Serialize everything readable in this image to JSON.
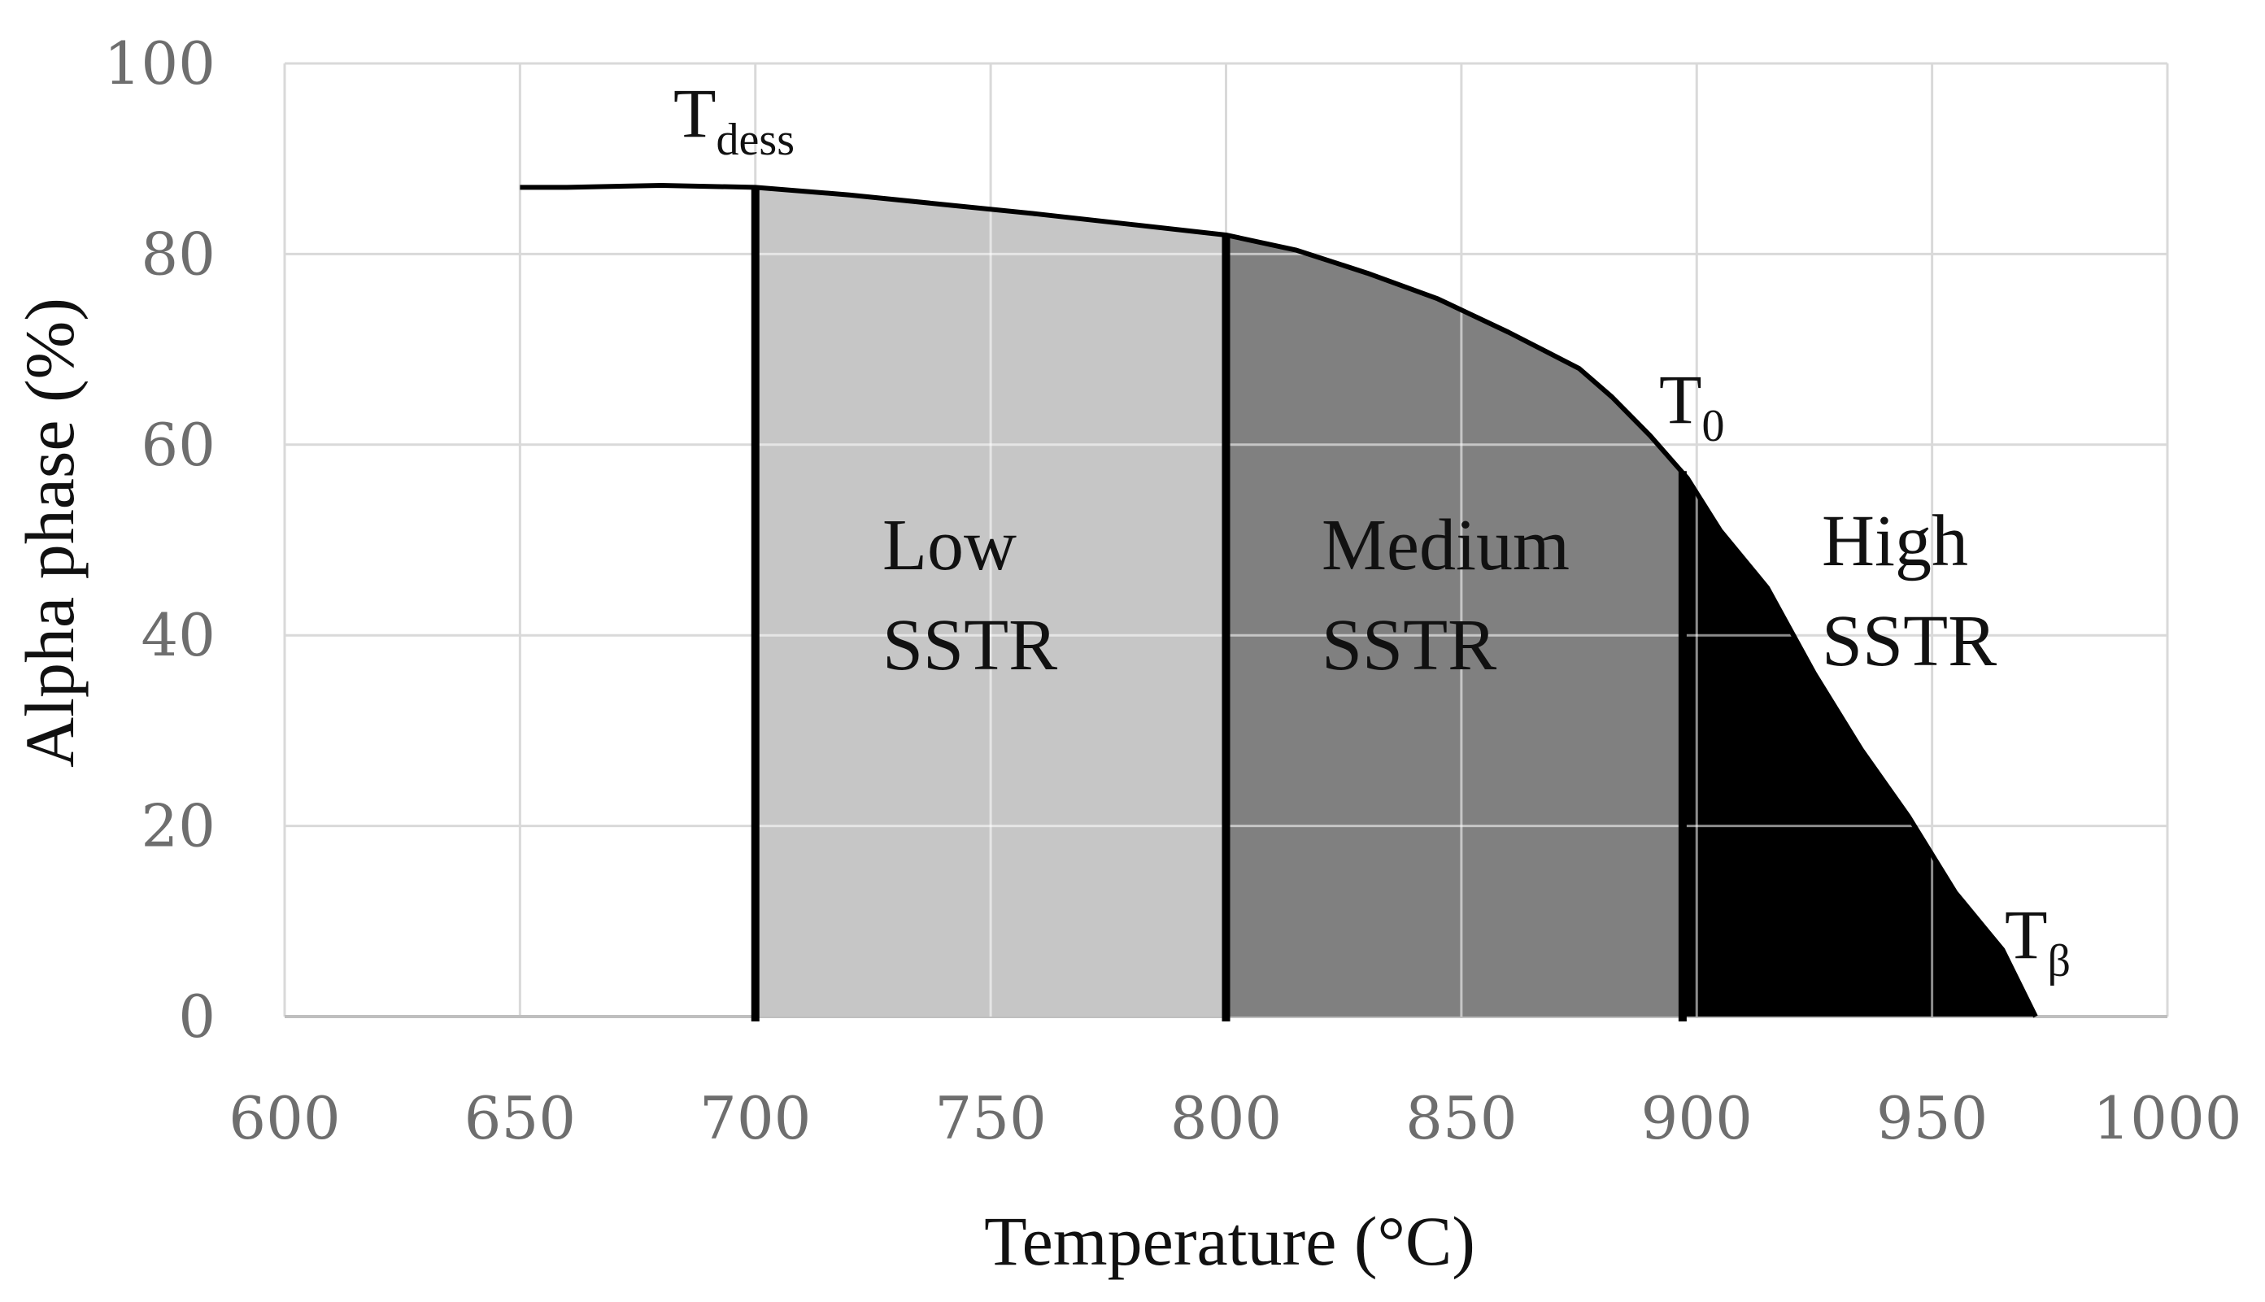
{
  "chart_data": {
    "type": "area",
    "title": "",
    "xlabel": "Temperature (°C)",
    "ylabel": "Alpha phase (%)",
    "xlim": [
      600,
      1000
    ],
    "ylim": [
      0,
      100
    ],
    "x_ticks": [
      600,
      650,
      700,
      750,
      800,
      850,
      900,
      950,
      1000
    ],
    "y_ticks": [
      0,
      20,
      40,
      60,
      80,
      100
    ],
    "grid": true,
    "series": [
      {
        "name": "Alpha phase",
        "x": [
          650,
          660,
          680,
          700,
          720,
          740,
          760,
          780,
          800,
          815,
          830,
          845,
          860,
          875,
          882,
          890,
          898,
          905,
          915,
          925,
          935,
          945,
          955,
          965,
          972
        ],
        "y": [
          87,
          87,
          87.2,
          87,
          86.2,
          85.2,
          84.2,
          83.1,
          82,
          80.4,
          78,
          75.3,
          71.8,
          68,
          65,
          61,
          56.5,
          51,
          45,
          36,
          28,
          21,
          13,
          7,
          0
        ]
      }
    ],
    "regions": [
      {
        "name": "Low",
        "label_line1": "Low",
        "label_line2": "SSTR",
        "x_start": 700,
        "x_end": 800,
        "color": "#c6c6c6"
      },
      {
        "name": "Medium",
        "label_line1": "Medium",
        "label_line2": "SSTR",
        "x_start": 800,
        "x_end": 897,
        "color": "#808080"
      },
      {
        "name": "High",
        "label_line1": "High",
        "label_line2": "SSTR",
        "x_start": 897,
        "x_end": 972,
        "color": "#000000"
      }
    ],
    "boundaries": [
      700,
      800,
      897
    ],
    "markers": [
      {
        "base": "T",
        "sub": "dess",
        "x": 700
      },
      {
        "base": "T",
        "sub": "0",
        "x": 897
      },
      {
        "base": "T",
        "sub": "β",
        "x": 972
      }
    ]
  }
}
